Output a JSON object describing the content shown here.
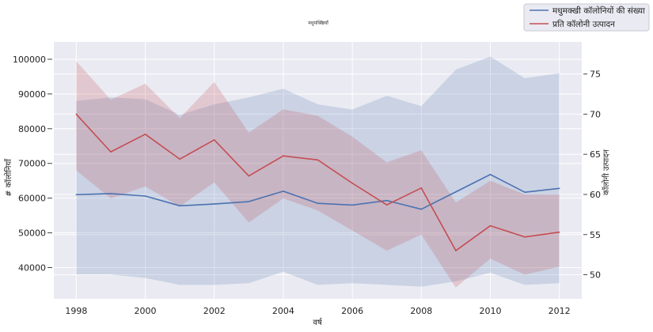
{
  "chart_data": {
    "type": "line",
    "title": "मधुमक्खियाँ",
    "xlabel": "वर्ष",
    "ylabel_left": "# कॉलोनियाँ",
    "ylabel_right": "कॉलोनी उत्पादन",
    "x": [
      1998,
      1999,
      2000,
      2001,
      2002,
      2003,
      2004,
      2005,
      2006,
      2007,
      2008,
      2009,
      2010,
      2011,
      2012
    ],
    "x_ticks": [
      "1998",
      "2000",
      "2002",
      "2004",
      "2006",
      "2008",
      "2010",
      "2012"
    ],
    "y_left_ticks": [
      "40000",
      "50000",
      "60000",
      "70000",
      "80000",
      "90000",
      "100000"
    ],
    "y_right_ticks": [
      "50",
      "55",
      "60",
      "65",
      "70",
      "75"
    ],
    "xlim": [
      1997.35,
      2012.65
    ],
    "ylim_left": [
      31000,
      105000
    ],
    "ylim_right": [
      47,
      79
    ],
    "grid": true,
    "legend_position": "top-right",
    "series": [
      {
        "name": "मधुमक्खी कॉलोनियों की संख्या",
        "axis": "left",
        "color": "#4c72b0",
        "values": [
          61000,
          61300,
          60600,
          57800,
          58300,
          59000,
          62000,
          58500,
          58000,
          59300,
          56800,
          61800,
          66800,
          61700,
          62800
        ],
        "ci_low": [
          38000,
          38000,
          37000,
          35000,
          35000,
          35500,
          38800,
          35000,
          35500,
          35000,
          34500,
          36000,
          38500,
          35000,
          35500
        ],
        "ci_high": [
          88000,
          89000,
          88500,
          84000,
          87000,
          89000,
          91500,
          87000,
          85500,
          89500,
          86500,
          97000,
          100800,
          94500,
          96000
        ]
      },
      {
        "name": "प्रति कॉलोनी उत्पादन",
        "axis": "right",
        "color": "#c44e52",
        "values": [
          70,
          65.3,
          67.5,
          64.4,
          66.8,
          62.3,
          64.8,
          64.3,
          61.4,
          58.7,
          60.8,
          53,
          56.1,
          54.7,
          55.3
        ],
        "ci_low": [
          63,
          59.5,
          61,
          58.5,
          61.5,
          56.5,
          59.5,
          58,
          55.5,
          53,
          55,
          48.4,
          52,
          50,
          51
        ],
        "ci_high": [
          76.6,
          71.8,
          73.8,
          69.5,
          74,
          67.7,
          70.6,
          69.8,
          67.2,
          64,
          65.5,
          59,
          61.7,
          60,
          60
        ]
      }
    ]
  }
}
